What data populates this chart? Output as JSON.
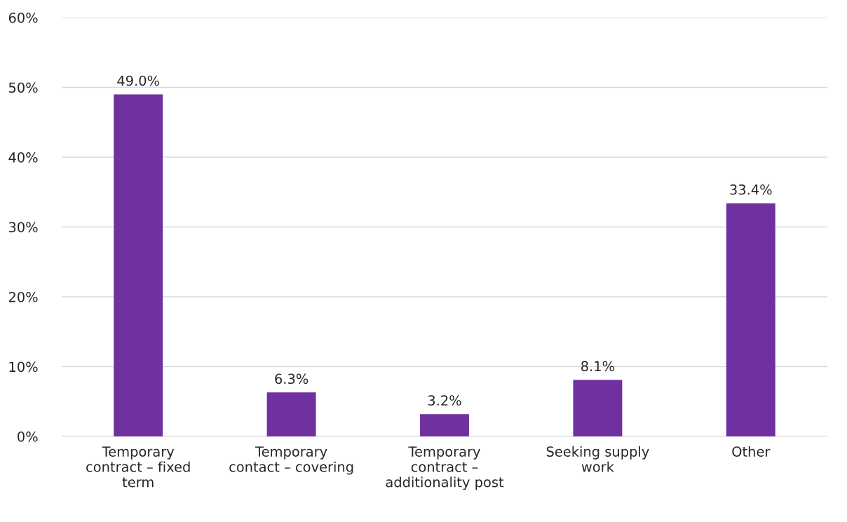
{
  "chart_data": {
    "type": "bar",
    "categories": [
      "Temporary\ncontract – fixed\nterm",
      "Temporary\ncontact – covering",
      "Temporary\ncontract –\nadditionality post",
      "Seeking supply\nwork",
      "Other"
    ],
    "values": [
      49.0,
      6.3,
      3.2,
      8.1,
      33.4
    ],
    "value_labels": [
      "49.0%",
      "6.3%",
      "3.2%",
      "8.1%",
      "33.4%"
    ],
    "color": "#7030a0",
    "ylim": [
      0,
      60
    ],
    "yticks": [
      {
        "value": 0,
        "label": "0%"
      },
      {
        "value": 10,
        "label": "10%"
      },
      {
        "value": 20,
        "label": "20%"
      },
      {
        "value": 30,
        "label": "30%"
      },
      {
        "value": 40,
        "label": "40%"
      },
      {
        "value": 50,
        "label": "50%"
      },
      {
        "value": 60,
        "label": "60%"
      }
    ],
    "grid": "y"
  }
}
